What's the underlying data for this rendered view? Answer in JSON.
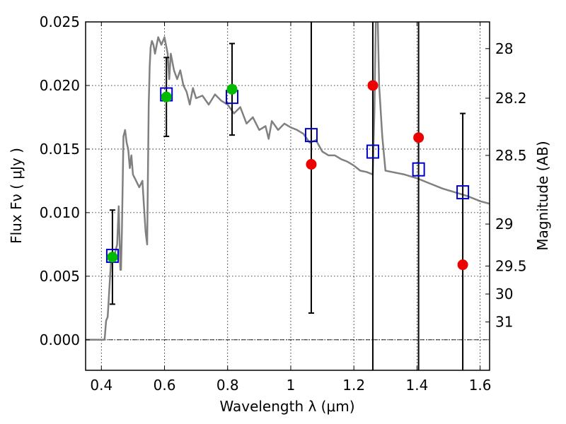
{
  "chart_data": {
    "type": "scatter",
    "xlabel": "Wavelength  λ (μm)",
    "ylabel": "Flux  Fν  ( μJy )",
    "y2label": "Magnitude (AB)",
    "xlim": [
      0.35,
      1.63
    ],
    "ylim": [
      -0.0024,
      0.025
    ],
    "grid": true,
    "x_ticks": [
      {
        "value": 0.4,
        "label": "0.4"
      },
      {
        "value": 0.6,
        "label": "0.6"
      },
      {
        "value": 0.8,
        "label": "0.8"
      },
      {
        "value": 1.0,
        "label": "1"
      },
      {
        "value": 1.2,
        "label": "1.2"
      },
      {
        "value": 1.4,
        "label": "1.4"
      },
      {
        "value": 1.6,
        "label": "1.6"
      }
    ],
    "y_ticks": [
      {
        "value": 0.0,
        "label": "0.000"
      },
      {
        "value": 0.005,
        "label": "0.005"
      },
      {
        "value": 0.01,
        "label": "0.010"
      },
      {
        "value": 0.015,
        "label": "0.015"
      },
      {
        "value": 0.02,
        "label": "0.020"
      },
      {
        "value": 0.025,
        "label": "0.025"
      }
    ],
    "y2_ticks": [
      {
        "flux": 0.0229,
        "label": "28"
      },
      {
        "flux": 0.019,
        "label": "28.2"
      },
      {
        "flux": 0.0145,
        "label": "28.5"
      },
      {
        "flux": 0.0091,
        "label": "29"
      },
      {
        "flux": 0.0058,
        "label": "29.5"
      },
      {
        "flux": 0.0036,
        "label": "30"
      },
      {
        "flux": 0.0014,
        "label": "31"
      }
    ],
    "colors": {
      "model": "#808080",
      "detection": "#00bb00",
      "upper_limit": "#ee0000",
      "synthetic": "#0000cc",
      "errorbar": "#000000"
    },
    "series": [
      {
        "type": "line",
        "x": [
          0.35,
          0.41,
          0.415,
          0.42,
          0.43,
          0.44,
          0.45,
          0.455,
          0.46,
          0.462,
          0.465,
          0.47,
          0.475,
          0.48,
          0.485,
          0.49,
          0.495,
          0.5,
          0.51,
          0.52,
          0.53,
          0.535,
          0.54,
          0.545,
          0.55,
          0.553,
          0.556,
          0.56,
          0.565,
          0.57,
          0.58,
          0.59,
          0.6,
          0.61,
          0.615,
          0.62,
          0.63,
          0.64,
          0.65,
          0.66,
          0.67,
          0.68,
          0.69,
          0.7,
          0.72,
          0.74,
          0.76,
          0.78,
          0.8,
          0.82,
          0.84,
          0.86,
          0.88,
          0.9,
          0.92,
          0.93,
          0.94,
          0.96,
          0.98,
          1.0,
          1.02,
          1.04,
          1.06,
          1.08,
          1.1,
          1.12,
          1.14,
          1.16,
          1.18,
          1.2,
          1.22,
          1.24,
          1.26,
          1.265,
          1.27,
          1.275,
          1.28,
          1.29,
          1.3,
          1.32,
          1.36,
          1.4,
          1.44,
          1.48,
          1.52,
          1.56,
          1.6,
          1.63
        ],
        "y": [
          0.0,
          0.0,
          0.0015,
          0.0018,
          0.006,
          0.0065,
          0.0075,
          0.0105,
          0.0055,
          0.0055,
          0.0085,
          0.016,
          0.0165,
          0.0155,
          0.015,
          0.0135,
          0.0145,
          0.013,
          0.0125,
          0.012,
          0.0125,
          0.0105,
          0.0085,
          0.0075,
          0.0185,
          0.0215,
          0.023,
          0.0235,
          0.0232,
          0.0225,
          0.0238,
          0.0232,
          0.0238,
          0.0225,
          0.0205,
          0.0225,
          0.0212,
          0.0205,
          0.0212,
          0.02,
          0.0195,
          0.0185,
          0.0198,
          0.019,
          0.0192,
          0.0185,
          0.0193,
          0.0188,
          0.0185,
          0.0178,
          0.0183,
          0.017,
          0.0175,
          0.0165,
          0.0168,
          0.0158,
          0.0172,
          0.0165,
          0.017,
          0.0167,
          0.0165,
          0.0162,
          0.0155,
          0.0157,
          0.0148,
          0.0145,
          0.0145,
          0.0142,
          0.014,
          0.0137,
          0.0133,
          0.0132,
          0.013,
          0.018,
          0.026,
          0.026,
          0.02,
          0.016,
          0.0133,
          0.0132,
          0.013,
          0.0127,
          0.0123,
          0.0119,
          0.0116,
          0.0113,
          0.0109,
          0.0107
        ]
      },
      {
        "type": "detections",
        "points": [
          {
            "x": 0.435,
            "y": 0.0065,
            "err_low": 0.0028,
            "err_high": 0.0102
          },
          {
            "x": 0.606,
            "y": 0.0191,
            "err_low": 0.016,
            "err_high": 0.0222
          },
          {
            "x": 0.814,
            "y": 0.0197,
            "err_low": 0.0161,
            "err_high": 0.0233
          }
        ]
      },
      {
        "type": "upper_limits",
        "points": [
          {
            "x": 1.065,
            "y": 0.0138,
            "err_low": 0.0021,
            "err_high": 0.025
          },
          {
            "x": 1.26,
            "y": 0.02,
            "err_low": -0.0024,
            "err_high": 0.025
          },
          {
            "x": 1.405,
            "y": 0.0159,
            "err_low": -0.0024,
            "err_high": 0.025
          },
          {
            "x": 1.545,
            "y": 0.0059,
            "err_low": -0.0024,
            "err_high": 0.0178
          }
        ]
      },
      {
        "type": "synthetic",
        "points": [
          {
            "x": 0.435,
            "y": 0.0066
          },
          {
            "x": 0.606,
            "y": 0.0193
          },
          {
            "x": 0.814,
            "y": 0.0191
          },
          {
            "x": 1.065,
            "y": 0.0161
          },
          {
            "x": 1.26,
            "y": 0.0148
          },
          {
            "x": 1.405,
            "y": 0.0134
          },
          {
            "x": 1.545,
            "y": 0.0116
          }
        ]
      }
    ]
  }
}
